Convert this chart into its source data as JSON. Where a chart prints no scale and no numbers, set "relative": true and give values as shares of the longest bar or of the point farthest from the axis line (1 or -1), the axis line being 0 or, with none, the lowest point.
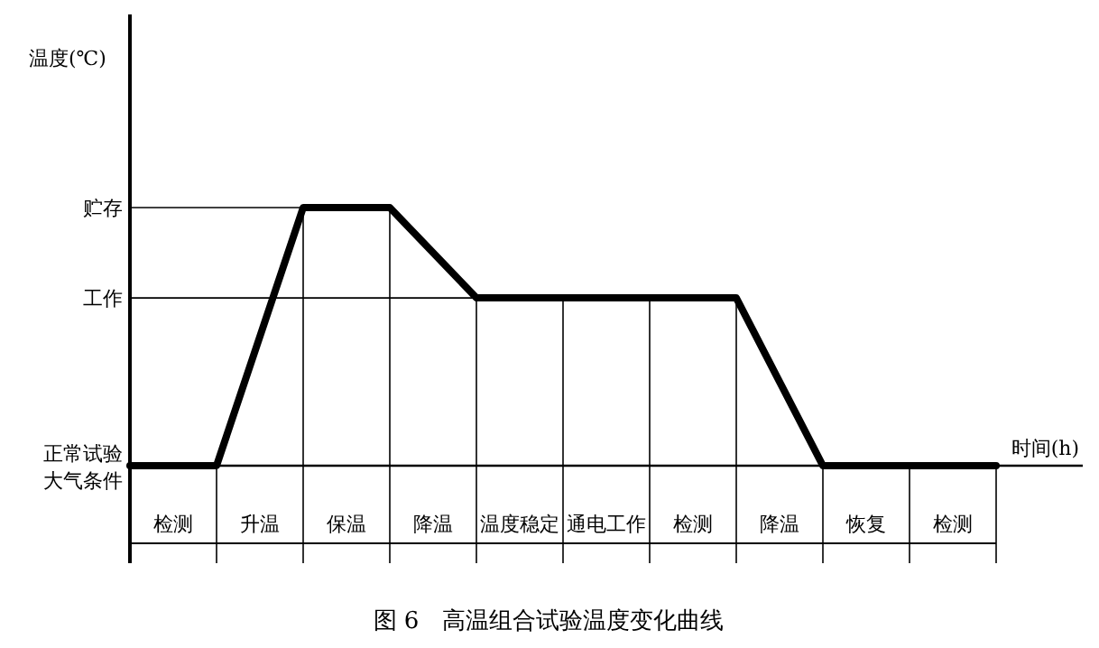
{
  "chart_data": {
    "type": "line",
    "relative": true,
    "title": "图 6　高温组合试验温度变化曲线",
    "xlabel": "时间(h)",
    "categories": [
      null,
      null,
      null,
      null,
      null,
      null,
      null,
      null,
      null,
      null,
      null
    ],
    "color": "#000000",
    "grid": "x",
    "values": [
      0,
      0,
      1,
      1,
      0.65,
      0.65,
      0.65,
      0.65,
      0,
      0,
      0
    ],
    "annotations": [
      "温度(℃)",
      "检测",
      "升温",
      "保温",
      "降温",
      "温度稳定",
      "通电工作",
      "检测",
      "降温",
      "恢复",
      "检测"
    ],
    "ref_lines": [
      {
        "axis": "y",
        "value": 1,
        "label": "贮存"
      },
      {
        "axis": "y",
        "value": 0.65,
        "label": "工作"
      },
      {
        "axis": "y",
        "value": 0,
        "label": "正常试验大气条件"
      }
    ]
  }
}
